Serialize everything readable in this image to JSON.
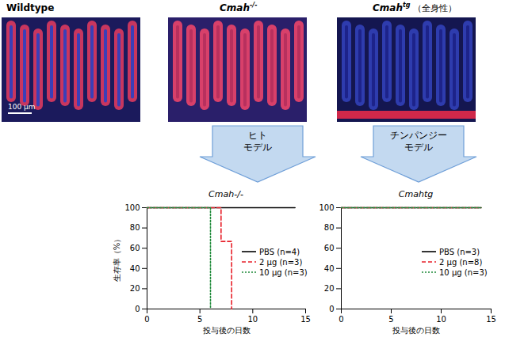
{
  "images": [
    {
      "label": {
        "text": "Wildtype"
      },
      "scale_bar": "100 µm"
    },
    {
      "label": {
        "gene": "Cmah",
        "sup": "-/-"
      }
    },
    {
      "label": {
        "gene": "Cmah",
        "sup": "tg",
        "note": "（全身性）"
      }
    }
  ],
  "arrows": [
    {
      "label": "ヒト モデル"
    },
    {
      "label": "チンパンジー モデル"
    }
  ],
  "chart_data": [
    {
      "type": "line",
      "title": "Cmah-/-",
      "xlabel": "投与後の日数",
      "ylabel": "生存率（%）",
      "xlim": [
        0,
        15
      ],
      "ylim": [
        0,
        100
      ],
      "xticks": [
        0,
        5,
        10,
        15
      ],
      "yticks": [
        0,
        20,
        40,
        60,
        80,
        100
      ],
      "legend": "right",
      "series": [
        {
          "name": "PBS (n=4)",
          "color": "#000000",
          "line_style": "solid",
          "x": [
            0,
            14
          ],
          "values": [
            100,
            100
          ]
        },
        {
          "name": "2 µg (n=3)",
          "color": "#e8202a",
          "line_style": "dashed",
          "x": [
            0,
            7,
            8
          ],
          "values": [
            100,
            66.7,
            0
          ]
        },
        {
          "name": "10 µg (n=3)",
          "color": "#1f8a3a",
          "line_style": "dotted",
          "x": [
            0,
            6
          ],
          "values": [
            100,
            0
          ]
        }
      ]
    },
    {
      "type": "line",
      "title": "Cmahtg",
      "xlabel": "投与後の日数",
      "xlim": [
        0,
        15
      ],
      "ylim": [
        0,
        100
      ],
      "xticks": [
        0,
        5,
        10,
        15
      ],
      "yticks": [
        0,
        20,
        40,
        60,
        80,
        100
      ],
      "legend": "right",
      "series": [
        {
          "name": "PBS (n=3)",
          "color": "#000000",
          "line_style": "solid",
          "x": [
            0,
            14
          ],
          "values": [
            100,
            100
          ]
        },
        {
          "name": "2 µg (n=8)",
          "color": "#e8202a",
          "line_style": "dashed",
          "x": [
            0,
            14
          ],
          "values": [
            100,
            100
          ]
        },
        {
          "name": "10 µg (n=3)",
          "color": "#1f8a3a",
          "line_style": "dotted",
          "x": [
            0,
            14
          ],
          "values": [
            100,
            100
          ]
        }
      ]
    }
  ]
}
